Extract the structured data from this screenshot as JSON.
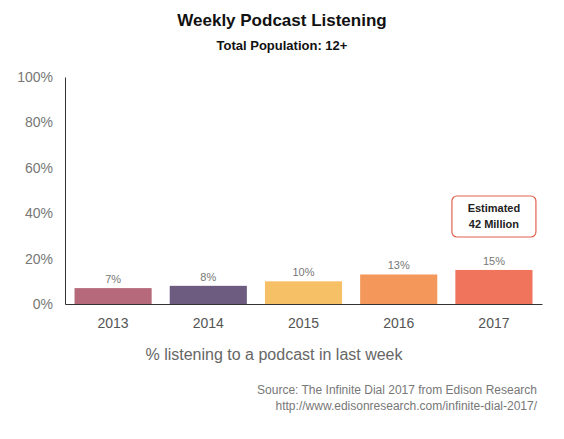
{
  "chart_data": {
    "type": "bar",
    "title": "Weekly Podcast Listening",
    "subtitle": "Total Population: 12+",
    "xlabel": "% listening to a podcast in last week",
    "categories": [
      "2013",
      "2014",
      "2015",
      "2016",
      "2017"
    ],
    "values": [
      7,
      8,
      10,
      13,
      15
    ],
    "value_labels": [
      "7%",
      "8%",
      "10%",
      "13%",
      "15%"
    ],
    "colors": [
      "#b5697b",
      "#6d5b80",
      "#f5c066",
      "#f3975a",
      "#f0735c"
    ],
    "ylim": [
      0,
      100
    ],
    "yticks": [
      {
        "value": 0,
        "label": "0%"
      },
      {
        "value": 20,
        "label": "20%"
      },
      {
        "value": 40,
        "label": "40%"
      },
      {
        "value": 60,
        "label": "60%"
      },
      {
        "value": 80,
        "label": "80%"
      },
      {
        "value": 100,
        "label": "100%"
      }
    ],
    "grid": false,
    "data_labels": true,
    "annotation": [
      "Estimated",
      "42 Million"
    ],
    "source": [
      "Source: The Infinite Dial 2017 from Edison Research",
      "http://www.edisonresearch.com/infinite-dial-2017/"
    ]
  }
}
